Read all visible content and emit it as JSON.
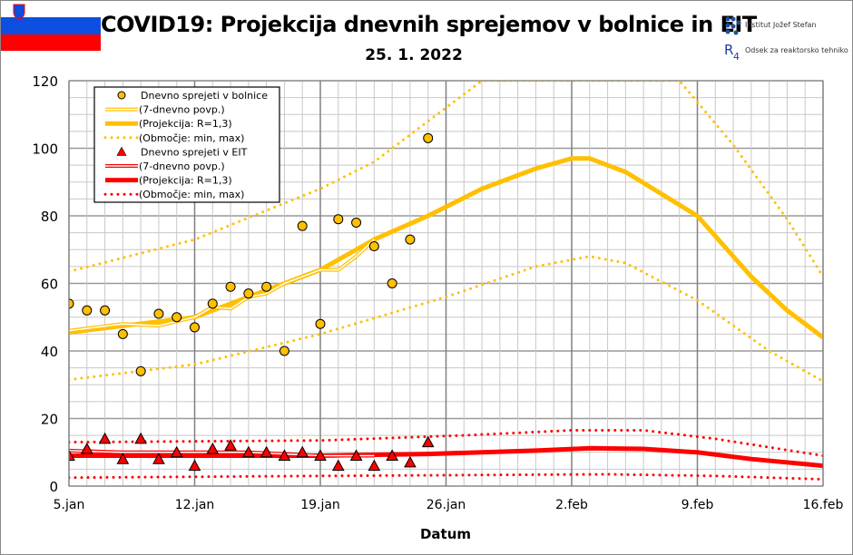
{
  "header": {
    "title": "COVID19: Projekcija dnevnih sprejemov v bolnice in EIT",
    "date": "25. 1. 2022",
    "logo_ijs": "Institut Jožef Stefan",
    "logo_r4": "Odsek za reaktorsko tehniko",
    "flag_colors": [
      "#ffffff",
      "#0b4ee0",
      "#ff0000"
    ]
  },
  "chart_data": {
    "type": "line",
    "title": "COVID19: Projekcija dnevnih sprejemov v bolnice in EIT",
    "xlabel": "Datum",
    "ylabel": "",
    "ylim": [
      0,
      120
    ],
    "yticks": [
      0,
      20,
      40,
      60,
      80,
      100,
      120
    ],
    "x_dates": [
      "5.jan",
      "16.feb"
    ],
    "xticks": [
      "5.jan",
      "12.jan",
      "19.jan",
      "26.jan",
      "2.feb",
      "9.feb",
      "16.feb"
    ],
    "grid": true,
    "legend_position": "top-left",
    "legend": [
      "Dnevno sprejeti v bolnice",
      "(7-dnevno povp.)",
      "(Projekcija: R=1,3)",
      "(Območje: min, max)",
      "Dnevno sprejeti v EIT",
      "(7-dnevno povp.)",
      "(Projekcija: R=1,3)",
      "(Območje: min, max)"
    ],
    "colors": {
      "hospital": "#ffc000",
      "icu": "#ff0000"
    },
    "hospital_daily": [
      54,
      52,
      52,
      45,
      34,
      51,
      50,
      47,
      54,
      59,
      57,
      59,
      40,
      77,
      48,
      79,
      78,
      71,
      60,
      73,
      103
    ],
    "hospital_avg7": [
      [
        0,
        46
      ],
      [
        3,
        48
      ],
      [
        5,
        47.5
      ],
      [
        7,
        50
      ],
      [
        8,
        53
      ],
      [
        9,
        52.5
      ],
      [
        10,
        56
      ],
      [
        11,
        57
      ],
      [
        12,
        60
      ],
      [
        13,
        62
      ],
      [
        14,
        64
      ],
      [
        15,
        64
      ],
      [
        16,
        68
      ],
      [
        17,
        73
      ]
    ],
    "hospital_projection": [
      [
        0,
        45.5
      ],
      [
        7,
        50
      ],
      [
        10,
        56
      ],
      [
        14,
        64
      ],
      [
        17,
        73
      ],
      [
        20,
        80
      ],
      [
        23,
        88
      ],
      [
        26,
        94
      ],
      [
        28,
        97
      ],
      [
        29,
        97
      ],
      [
        31,
        93
      ],
      [
        35,
        80
      ],
      [
        38,
        62
      ],
      [
        40,
        52
      ],
      [
        42,
        44
      ]
    ],
    "hospital_max": [
      [
        0,
        63.5
      ],
      [
        7,
        73
      ],
      [
        14,
        88
      ],
      [
        17,
        96
      ],
      [
        20,
        108
      ],
      [
        23,
        120
      ],
      [
        34,
        120
      ],
      [
        37,
        101
      ],
      [
        40,
        79
      ],
      [
        42,
        62
      ]
    ],
    "hospital_min": [
      [
        0,
        31.5
      ],
      [
        7,
        36
      ],
      [
        14,
        45
      ],
      [
        21,
        56
      ],
      [
        26,
        65
      ],
      [
        29,
        68
      ],
      [
        31,
        66
      ],
      [
        35,
        55
      ],
      [
        39,
        40
      ],
      [
        42,
        31
      ]
    ],
    "icu_daily": [
      9,
      11,
      14,
      8,
      14,
      8,
      10,
      6,
      11,
      12,
      10,
      10,
      9,
      10,
      9,
      6,
      9,
      6,
      9,
      7,
      13
    ],
    "icu_avg7": [
      [
        0,
        10.5
      ],
      [
        3,
        10
      ],
      [
        7,
        10
      ],
      [
        10,
        10
      ],
      [
        14,
        9
      ],
      [
        17,
        9
      ]
    ],
    "icu_projection": [
      [
        0,
        9
      ],
      [
        14,
        9
      ],
      [
        20,
        9.5
      ],
      [
        26,
        10.5
      ],
      [
        29,
        11.2
      ],
      [
        32,
        11
      ],
      [
        35,
        10
      ],
      [
        38,
        8
      ],
      [
        42,
        6
      ]
    ],
    "icu_max": [
      [
        0,
        13
      ],
      [
        14,
        13.5
      ],
      [
        22,
        15
      ],
      [
        28,
        16.5
      ],
      [
        32,
        16.5
      ],
      [
        36,
        14
      ],
      [
        42,
        9
      ]
    ],
    "icu_min": [
      [
        0,
        2.5
      ],
      [
        14,
        3
      ],
      [
        30,
        3.5
      ],
      [
        36,
        3
      ],
      [
        42,
        2
      ]
    ]
  }
}
